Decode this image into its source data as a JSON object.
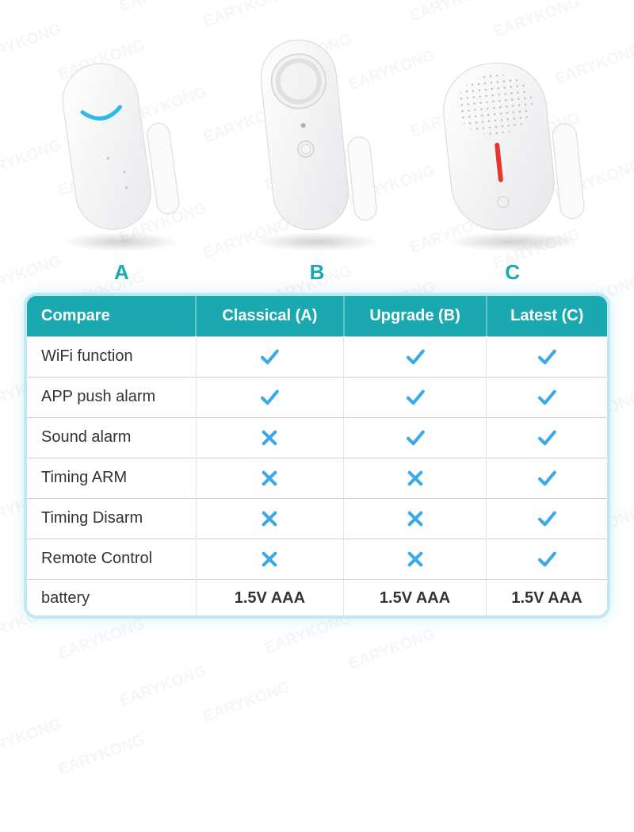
{
  "watermark_text": "EARYKONG",
  "products": [
    {
      "key": "A",
      "label": "A",
      "label_color": "#1aa9b0"
    },
    {
      "key": "B",
      "label": "B",
      "label_color": "#1aa9b0"
    },
    {
      "key": "C",
      "label": "C",
      "label_color": "#1aa9b0"
    }
  ],
  "table": {
    "header_bg": "#1aa9b0",
    "header_text_color": "#ffffff",
    "border_color": "#bfe8f5",
    "columns": [
      {
        "label": "Compare",
        "align": "left"
      },
      {
        "label": "Classical (A)",
        "align": "center"
      },
      {
        "label": "Upgrade (B)",
        "align": "center"
      },
      {
        "label": "Latest (C)",
        "align": "center"
      }
    ],
    "rows": [
      {
        "feature": "WiFi function",
        "values": [
          "check",
          "check",
          "check"
        ]
      },
      {
        "feature": "APP push alarm",
        "values": [
          "check",
          "check",
          "check"
        ]
      },
      {
        "feature": "Sound alarm",
        "values": [
          "cross",
          "check",
          "check"
        ]
      },
      {
        "feature": "Timing ARM",
        "values": [
          "cross",
          "cross",
          "check"
        ]
      },
      {
        "feature": "Timing Disarm",
        "values": [
          "cross",
          "cross",
          "check"
        ]
      },
      {
        "feature": "Remote Control",
        "values": [
          "cross",
          "cross",
          "check"
        ]
      },
      {
        "feature": "battery",
        "values": [
          "1.5V AAA",
          "1.5V AAA",
          "1.5V AAA"
        ]
      }
    ],
    "check_color": "#3aa9e8",
    "cross_color": "#3aa9e8",
    "text_color": "#333333",
    "row_border": "#d0d0d0"
  },
  "device_style": {
    "body_fill": "#f5f6f7",
    "body_stroke": "#dcdde0",
    "shadow": "rgba(0,0,0,0.12)",
    "led_color_a": "#2fb8e8",
    "led_color_c": "#e2382f",
    "magnet_fill": "#f9f9fa"
  }
}
